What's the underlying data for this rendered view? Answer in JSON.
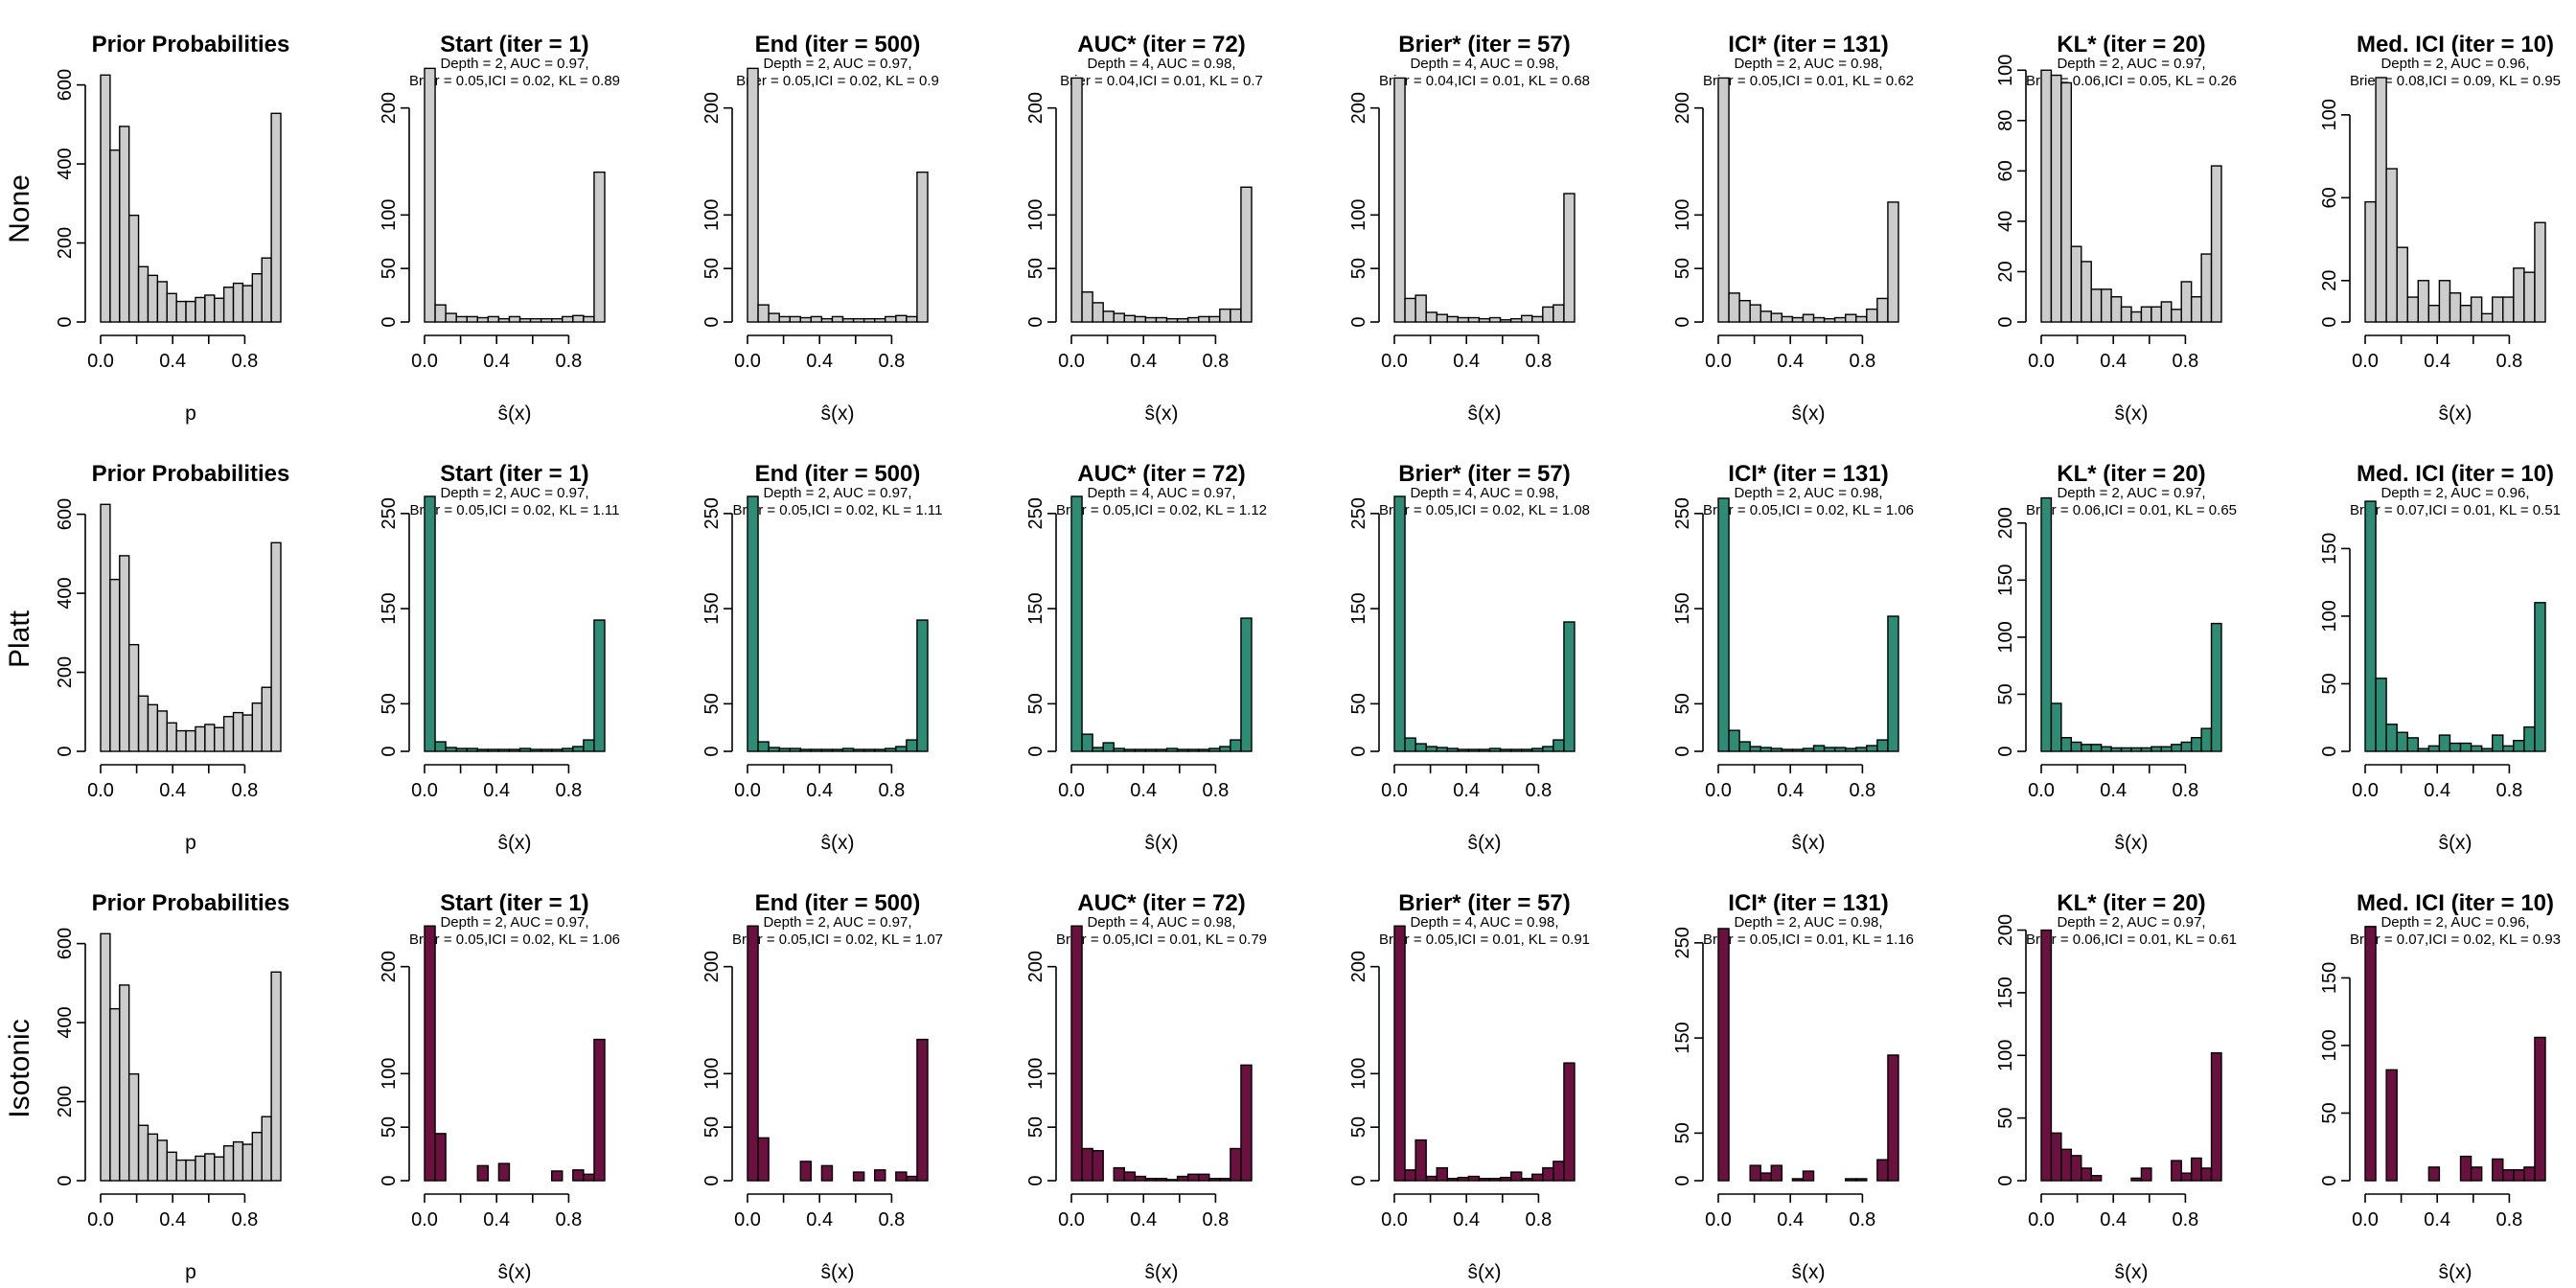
{
  "row_labels": [
    "None",
    "Platt",
    "Isotonic"
  ],
  "colors": {
    "prior": "#cccccc",
    "None": "#cccccc",
    "Platt": "#2e8b74",
    "Isotonic": "#6b1140"
  },
  "chart_data": [
    {
      "type": "bar",
      "row": "None",
      "title": "Prior Probabilities",
      "subtitle1": "",
      "subtitle2": "",
      "xlabel": "p",
      "x_ticks": [
        "0.0",
        "0.4",
        "0.8"
      ],
      "y_ticks": [
        0,
        200,
        400,
        600
      ],
      "ylim": [
        0,
        650
      ],
      "values": [
        625,
        435,
        495,
        270,
        140,
        118,
        102,
        72,
        52,
        52,
        62,
        68,
        60,
        88,
        98,
        92,
        122,
        162,
        528
      ]
    },
    {
      "type": "bar",
      "row": "None",
      "title": "Start (iter = 1)",
      "subtitle1": "Depth = 2, AUC = 0.97,",
      "subtitle2": "Brier = 0.05,ICI = 0.02, KL = 0.89",
      "xlabel": "ŝ(x)",
      "x_ticks": [
        "0.0",
        "0.4",
        "0.8"
      ],
      "y_ticks": [
        0,
        50,
        100,
        200
      ],
      "ylim": [
        0,
        240
      ],
      "values": [
        237,
        16,
        8,
        5,
        5,
        4,
        5,
        3,
        5,
        3,
        3,
        3,
        3,
        5,
        6,
        5,
        140
      ]
    },
    {
      "type": "bar",
      "row": "None",
      "title": "End (iter = 500)",
      "subtitle1": "Depth = 2, AUC = 0.97,",
      "subtitle2": "Brier = 0.05,ICI = 0.02, KL = 0.9",
      "xlabel": "ŝ(x)",
      "x_ticks": [
        "0.0",
        "0.4",
        "0.8"
      ],
      "y_ticks": [
        0,
        50,
        100,
        200
      ],
      "ylim": [
        0,
        240
      ],
      "values": [
        237,
        16,
        8,
        5,
        5,
        4,
        5,
        3,
        5,
        3,
        3,
        3,
        3,
        5,
        6,
        5,
        140
      ]
    },
    {
      "type": "bar",
      "row": "None",
      "title": "AUC* (iter = 72)",
      "subtitle1": "Depth = 4, AUC = 0.98,",
      "subtitle2": "Brier = 0.04,ICI = 0.01, KL = 0.7",
      "xlabel": "ŝ(x)",
      "x_ticks": [
        "0.0",
        "0.4",
        "0.8"
      ],
      "y_ticks": [
        0,
        50,
        100,
        200
      ],
      "ylim": [
        0,
        240
      ],
      "values": [
        228,
        28,
        18,
        10,
        8,
        6,
        5,
        4,
        4,
        3,
        3,
        4,
        5,
        5,
        12,
        12,
        126
      ]
    },
    {
      "type": "bar",
      "row": "None",
      "title": "Brier* (iter = 57)",
      "subtitle1": "Depth = 4, AUC = 0.98,",
      "subtitle2": "Brier = 0.04,ICI = 0.01, KL = 0.68",
      "xlabel": "ŝ(x)",
      "x_ticks": [
        "0.0",
        "0.4",
        "0.8"
      ],
      "y_ticks": [
        0,
        50,
        100,
        200
      ],
      "ylim": [
        0,
        240
      ],
      "values": [
        228,
        22,
        25,
        9,
        7,
        5,
        4,
        4,
        3,
        4,
        2,
        3,
        6,
        5,
        14,
        16,
        120
      ]
    },
    {
      "type": "bar",
      "row": "None",
      "title": "ICI* (iter = 131)",
      "subtitle1": "Depth = 2, AUC = 0.98,",
      "subtitle2": "Brier = 0.05,ICI = 0.01, KL = 0.62",
      "xlabel": "ŝ(x)",
      "x_ticks": [
        "0.0",
        "0.4",
        "0.8"
      ],
      "y_ticks": [
        0,
        50,
        100,
        200
      ],
      "ylim": [
        0,
        240
      ],
      "values": [
        228,
        27,
        20,
        16,
        10,
        8,
        5,
        4,
        7,
        4,
        3,
        4,
        7,
        5,
        12,
        22,
        112
      ]
    },
    {
      "type": "bar",
      "row": "None",
      "title": "KL* (iter = 20)",
      "subtitle1": "Depth = 2, AUC = 0.97,",
      "subtitle2": "Brier = 0.06,ICI = 0.05, KL = 0.26",
      "xlabel": "ŝ(x)",
      "x_ticks": [
        "0.0",
        "0.4",
        "0.8"
      ],
      "y_ticks": [
        0,
        20,
        40,
        60,
        80,
        100
      ],
      "ylim": [
        0,
        102
      ],
      "values": [
        100,
        98,
        95,
        30,
        24,
        13,
        13,
        10,
        6,
        4,
        6,
        6,
        8,
        5,
        16,
        10,
        27,
        62
      ]
    },
    {
      "type": "bar",
      "row": "None",
      "title": "Med. ICI (iter = 10)",
      "subtitle1": "Depth = 2, AUC = 0.96,",
      "subtitle2": "Brier = 0.08,ICI = 0.09, KL = 0.95",
      "xlabel": "ŝ(x)",
      "x_ticks": [
        "0.0",
        "0.4",
        "0.8"
      ],
      "y_ticks": [
        0,
        20,
        60,
        100
      ],
      "ylim": [
        0,
        124
      ],
      "values": [
        58,
        118,
        74,
        36,
        12,
        20,
        8,
        20,
        14,
        8,
        12,
        4,
        12,
        12,
        26,
        24,
        48
      ]
    },
    {
      "type": "bar",
      "row": "Platt",
      "title": "Prior Probabilities",
      "subtitle1": "",
      "subtitle2": "",
      "xlabel": "p",
      "x_ticks": [
        "0.0",
        "0.4",
        "0.8"
      ],
      "y_ticks": [
        0,
        200,
        400,
        600
      ],
      "ylim": [
        0,
        650
      ],
      "values": [
        625,
        435,
        495,
        270,
        140,
        118,
        102,
        72,
        52,
        52,
        62,
        68,
        60,
        88,
        98,
        92,
        122,
        162,
        528
      ]
    },
    {
      "type": "bar",
      "row": "Platt",
      "title": "Start (iter = 1)",
      "subtitle1": "Depth = 2, AUC = 0.97,",
      "subtitle2": "Brier = 0.05,ICI = 0.02, KL = 1.11",
      "xlabel": "ŝ(x)",
      "x_ticks": [
        "0.0",
        "0.4",
        "0.8"
      ],
      "y_ticks": [
        0,
        50,
        150,
        250
      ],
      "ylim": [
        0,
        270
      ],
      "values": [
        268,
        10,
        4,
        3,
        3,
        2,
        2,
        2,
        2,
        3,
        2,
        2,
        2,
        3,
        5,
        12,
        138
      ]
    },
    {
      "type": "bar",
      "row": "Platt",
      "title": "End (iter = 500)",
      "subtitle1": "Depth = 2, AUC = 0.97,",
      "subtitle2": "Brier = 0.05,ICI = 0.02, KL = 1.11",
      "xlabel": "ŝ(x)",
      "x_ticks": [
        "0.0",
        "0.4",
        "0.8"
      ],
      "y_ticks": [
        0,
        50,
        150,
        250
      ],
      "ylim": [
        0,
        270
      ],
      "values": [
        268,
        10,
        4,
        3,
        3,
        2,
        2,
        2,
        2,
        3,
        2,
        2,
        2,
        3,
        5,
        12,
        138
      ]
    },
    {
      "type": "bar",
      "row": "Platt",
      "title": "AUC* (iter = 72)",
      "subtitle1": "Depth = 4, AUC = 0.97,",
      "subtitle2": "Brier = 0.05,ICI = 0.02, KL = 1.12",
      "xlabel": "ŝ(x)",
      "x_ticks": [
        "0.0",
        "0.4",
        "0.8"
      ],
      "y_ticks": [
        0,
        50,
        150,
        250
      ],
      "ylim": [
        0,
        270
      ],
      "values": [
        268,
        18,
        4,
        9,
        3,
        2,
        2,
        2,
        2,
        3,
        2,
        2,
        2,
        3,
        5,
        12,
        140
      ]
    },
    {
      "type": "bar",
      "row": "Platt",
      "title": "Brier* (iter = 57)",
      "subtitle1": "Depth = 4, AUC = 0.98,",
      "subtitle2": "Brier = 0.05,ICI = 0.02, KL = 1.08",
      "xlabel": "ŝ(x)",
      "x_ticks": [
        "0.0",
        "0.4",
        "0.8"
      ],
      "y_ticks": [
        0,
        50,
        150,
        250
      ],
      "ylim": [
        0,
        270
      ],
      "values": [
        268,
        14,
        8,
        5,
        4,
        3,
        2,
        2,
        2,
        3,
        2,
        2,
        2,
        3,
        5,
        12,
        136
      ]
    },
    {
      "type": "bar",
      "row": "Platt",
      "title": "ICI* (iter = 131)",
      "subtitle1": "Depth = 2, AUC = 0.98,",
      "subtitle2": "Brier = 0.05,ICI = 0.02, KL = 1.06",
      "xlabel": "ŝ(x)",
      "x_ticks": [
        "0.0",
        "0.4",
        "0.8"
      ],
      "y_ticks": [
        0,
        50,
        150,
        250
      ],
      "ylim": [
        0,
        270
      ],
      "values": [
        266,
        22,
        10,
        5,
        4,
        3,
        2,
        2,
        3,
        6,
        4,
        4,
        3,
        4,
        6,
        12,
        142
      ]
    },
    {
      "type": "bar",
      "row": "Platt",
      "title": "KL* (iter = 20)",
      "subtitle1": "Depth = 2, AUC = 0.97,",
      "subtitle2": "Brier = 0.06,ICI = 0.01, KL = 0.65",
      "xlabel": "ŝ(x)",
      "x_ticks": [
        "0.0",
        "0.4",
        "0.8"
      ],
      "y_ticks": [
        0,
        50,
        100,
        150,
        200
      ],
      "ylim": [
        0,
        225
      ],
      "values": [
        222,
        42,
        12,
        8,
        6,
        6,
        4,
        3,
        3,
        3,
        3,
        4,
        4,
        6,
        8,
        12,
        20,
        112
      ]
    },
    {
      "type": "bar",
      "row": "Platt",
      "title": "Med. ICI (iter = 10)",
      "subtitle1": "Depth = 2, AUC = 0.96,",
      "subtitle2": "Brier = 0.07,ICI = 0.01, KL = 0.51",
      "xlabel": "ŝ(x)",
      "x_ticks": [
        "0.0",
        "0.4",
        "0.8"
      ],
      "y_ticks": [
        0,
        50,
        100,
        150
      ],
      "ylim": [
        0,
        190
      ],
      "values": [
        185,
        54,
        20,
        14,
        10,
        2,
        4,
        12,
        6,
        6,
        4,
        2,
        12,
        4,
        8,
        18,
        110
      ]
    },
    {
      "type": "bar",
      "row": "Isotonic",
      "title": "Prior Probabilities",
      "subtitle1": "",
      "subtitle2": "",
      "xlabel": "p",
      "x_ticks": [
        "0.0",
        "0.4",
        "0.8"
      ],
      "y_ticks": [
        0,
        200,
        400,
        600
      ],
      "ylim": [
        0,
        650
      ],
      "values": [
        625,
        435,
        495,
        270,
        140,
        118,
        102,
        72,
        52,
        52,
        62,
        68,
        60,
        88,
        98,
        92,
        122,
        162,
        528
      ]
    },
    {
      "type": "bar",
      "row": "Isotonic",
      "title": "Start (iter = 1)",
      "subtitle1": "Depth = 2, AUC = 0.97,",
      "subtitle2": "Brier = 0.05,ICI = 0.02, KL = 1.06",
      "xlabel": "ŝ(x)",
      "x_ticks": [
        "0.0",
        "0.4",
        "0.8"
      ],
      "y_ticks": [
        0,
        50,
        100,
        200
      ],
      "ylim": [
        0,
        240
      ],
      "values": [
        238,
        44,
        0,
        0,
        0,
        14,
        0,
        16,
        0,
        0,
        0,
        0,
        9,
        0,
        10,
        6,
        132
      ]
    },
    {
      "type": "bar",
      "row": "Isotonic",
      "title": "End (iter = 500)",
      "subtitle1": "Depth = 2, AUC = 0.97,",
      "subtitle2": "Brier = 0.05,ICI = 0.02, KL = 1.07",
      "xlabel": "ŝ(x)",
      "x_ticks": [
        "0.0",
        "0.4",
        "0.8"
      ],
      "y_ticks": [
        0,
        50,
        100,
        200
      ],
      "ylim": [
        0,
        240
      ],
      "values": [
        238,
        40,
        0,
        0,
        0,
        18,
        0,
        14,
        0,
        0,
        8,
        0,
        10,
        0,
        8,
        4,
        132
      ]
    },
    {
      "type": "bar",
      "row": "Isotonic",
      "title": "AUC* (iter = 72)",
      "subtitle1": "Depth = 4, AUC = 0.98,",
      "subtitle2": "Brier = 0.05,ICI = 0.01, KL = 0.79",
      "xlabel": "ŝ(x)",
      "x_ticks": [
        "0.0",
        "0.4",
        "0.8"
      ],
      "y_ticks": [
        0,
        50,
        100,
        200
      ],
      "ylim": [
        0,
        240
      ],
      "values": [
        238,
        30,
        28,
        0,
        12,
        8,
        4,
        2,
        2,
        1,
        4,
        6,
        6,
        2,
        2,
        30,
        108
      ]
    },
    {
      "type": "bar",
      "row": "Isotonic",
      "title": "Brier* (iter = 57)",
      "subtitle1": "Depth = 4, AUC = 0.98,",
      "subtitle2": "Brier = 0.05,ICI = 0.01, KL = 0.91",
      "xlabel": "ŝ(x)",
      "x_ticks": [
        "0.0",
        "0.4",
        "0.8"
      ],
      "y_ticks": [
        0,
        50,
        100,
        200
      ],
      "ylim": [
        0,
        240
      ],
      "values": [
        238,
        10,
        38,
        4,
        12,
        2,
        3,
        4,
        2,
        2,
        3,
        8,
        2,
        6,
        12,
        18,
        110
      ]
    },
    {
      "type": "bar",
      "row": "Isotonic",
      "title": "ICI* (iter = 131)",
      "subtitle1": "Depth = 2, AUC = 0.98,",
      "subtitle2": "Brier = 0.05,ICI = 0.01, KL = 1.16",
      "xlabel": "ŝ(x)",
      "x_ticks": [
        "0.0",
        "0.4",
        "0.8"
      ],
      "y_ticks": [
        0,
        50,
        150,
        250
      ],
      "ylim": [
        0,
        270
      ],
      "values": [
        265,
        0,
        0,
        16,
        8,
        16,
        0,
        2,
        10,
        0,
        0,
        0,
        2,
        2,
        0,
        22,
        132
      ]
    },
    {
      "type": "bar",
      "row": "Isotonic",
      "title": "KL* (iter = 20)",
      "subtitle1": "Depth = 2, AUC = 0.97,",
      "subtitle2": "Brier = 0.06,ICI = 0.01, KL = 0.61",
      "xlabel": "ŝ(x)",
      "x_ticks": [
        "0.0",
        "0.4",
        "0.8"
      ],
      "y_ticks": [
        0,
        50,
        100,
        150,
        200
      ],
      "ylim": [
        0,
        205
      ],
      "values": [
        200,
        38,
        25,
        20,
        10,
        4,
        0,
        0,
        0,
        2,
        10,
        0,
        0,
        16,
        6,
        18,
        10,
        102
      ]
    },
    {
      "type": "bar",
      "row": "Isotonic",
      "title": "Med. ICI (iter = 10)",
      "subtitle1": "Depth = 2, AUC = 0.96,",
      "subtitle2": "Brier = 0.07,ICI = 0.02, KL = 0.93",
      "xlabel": "ŝ(x)",
      "x_ticks": [
        "0.0",
        "0.4",
        "0.8"
      ],
      "y_ticks": [
        0,
        50,
        100,
        150
      ],
      "ylim": [
        0,
        190
      ],
      "values": [
        188,
        0,
        82,
        0,
        0,
        0,
        10,
        0,
        0,
        18,
        10,
        0,
        16,
        8,
        8,
        10,
        106
      ]
    }
  ]
}
